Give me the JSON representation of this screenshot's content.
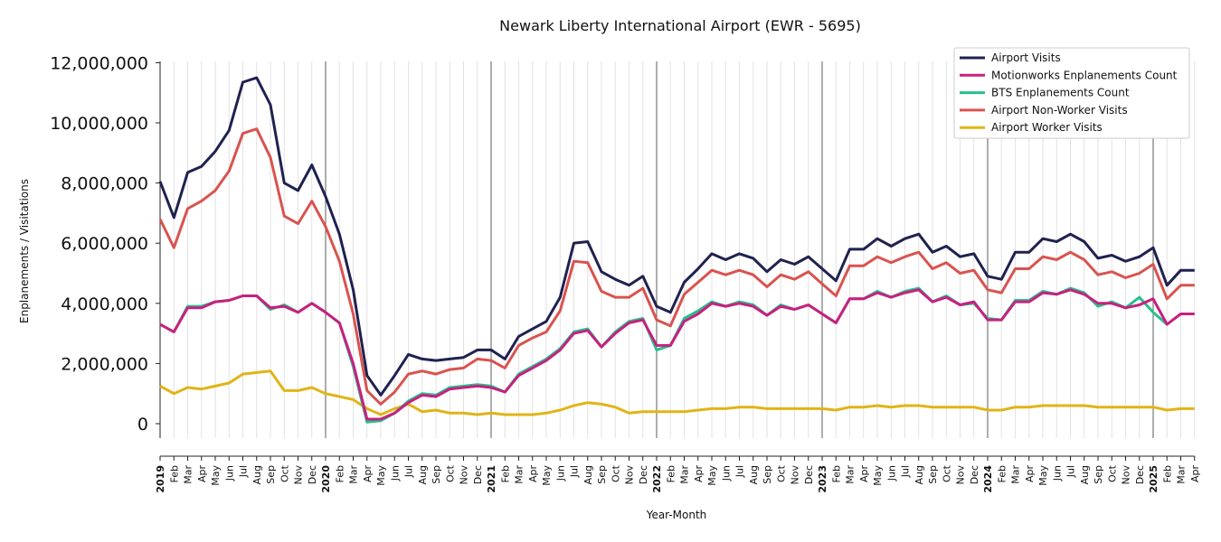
{
  "chart_data": {
    "type": "line",
    "title": "Newark Liberty International Airport (EWR - 5695)",
    "xlabel": "Year-Month",
    "ylabel": "Enplanements / Visitations",
    "ylim": [
      -500000,
      12000000
    ],
    "yticks": [
      0,
      2000000,
      4000000,
      6000000,
      8000000,
      10000000,
      12000000
    ],
    "ytick_labels": [
      "0",
      "2,000,000",
      "4,000,000",
      "6,000,000",
      "8,000,000",
      "10,000,000",
      "12,000,000"
    ],
    "grid": "vertical monthly gridlines",
    "legend_position": "top-right",
    "month_labels": [
      "Feb",
      "Mar",
      "Apr",
      "May",
      "Jun",
      "Jul",
      "Aug",
      "Sep",
      "Oct",
      "Nov",
      "Dec"
    ],
    "year_labels": [
      "2019",
      "2020",
      "2021",
      "2022",
      "2023",
      "2024",
      "2025"
    ],
    "x": [
      "2019-01",
      "2019-02",
      "2019-03",
      "2019-04",
      "2019-05",
      "2019-06",
      "2019-07",
      "2019-08",
      "2019-09",
      "2019-10",
      "2019-11",
      "2019-12",
      "2020-01",
      "2020-02",
      "2020-03",
      "2020-04",
      "2020-05",
      "2020-06",
      "2020-07",
      "2020-08",
      "2020-09",
      "2020-10",
      "2020-11",
      "2020-12",
      "2021-01",
      "2021-02",
      "2021-03",
      "2021-04",
      "2021-05",
      "2021-06",
      "2021-07",
      "2021-08",
      "2021-09",
      "2021-10",
      "2021-11",
      "2021-12",
      "2022-01",
      "2022-02",
      "2022-03",
      "2022-04",
      "2022-05",
      "2022-06",
      "2022-07",
      "2022-08",
      "2022-09",
      "2022-10",
      "2022-11",
      "2022-12",
      "2023-01",
      "2023-02",
      "2023-03",
      "2023-04",
      "2023-05",
      "2023-06",
      "2023-07",
      "2023-08",
      "2023-09",
      "2023-10",
      "2023-11",
      "2023-12",
      "2024-01",
      "2024-02",
      "2024-03",
      "2024-04",
      "2024-05",
      "2024-06",
      "2024-07",
      "2024-08",
      "2024-09",
      "2024-10",
      "2024-11",
      "2024-12",
      "2025-01",
      "2025-02",
      "2025-03",
      "2025-04"
    ],
    "series": [
      {
        "name": "Airport Visits",
        "color": "#1f2150",
        "values": [
          8050000,
          6850000,
          8350000,
          8550000,
          9050000,
          9750000,
          11350000,
          11500000,
          10600000,
          8000000,
          7750000,
          8600000,
          7550000,
          6300000,
          4450000,
          1600000,
          950000,
          1600000,
          2300000,
          2150000,
          2100000,
          2150000,
          2200000,
          2450000,
          2450000,
          2150000,
          2900000,
          3150000,
          3400000,
          4200000,
          6000000,
          6050000,
          5050000,
          4800000,
          4600000,
          4900000,
          3900000,
          3700000,
          4700000,
          5150000,
          5650000,
          5450000,
          5650000,
          5500000,
          5050000,
          5450000,
          5300000,
          5550000,
          5150000,
          4750000,
          5800000,
          5800000,
          6150000,
          5900000,
          6150000,
          6300000,
          5700000,
          5900000,
          5550000,
          5650000,
          4900000,
          4800000,
          5700000,
          5700000,
          6150000,
          6050000,
          6300000,
          6050000,
          5500000,
          5600000,
          5400000,
          5550000,
          5850000,
          4600000,
          5100000,
          5100000
        ]
      },
      {
        "name": "Motionworks Enplanements Count",
        "color": "#c8207f",
        "values": [
          3300000,
          3050000,
          3850000,
          3850000,
          4050000,
          4100000,
          4250000,
          4250000,
          3850000,
          3900000,
          3700000,
          4000000,
          3700000,
          3350000,
          2000000,
          150000,
          150000,
          350000,
          700000,
          950000,
          900000,
          1150000,
          1200000,
          1250000,
          1200000,
          1050000,
          1600000,
          1850000,
          2100000,
          2450000,
          3000000,
          3100000,
          2550000,
          3000000,
          3350000,
          3450000,
          2600000,
          2600000,
          3400000,
          3650000,
          4000000,
          3900000,
          4000000,
          3900000,
          3600000,
          3900000,
          3800000,
          3950000,
          3650000,
          3350000,
          4150000,
          4150000,
          4350000,
          4200000,
          4350000,
          4450000,
          4050000,
          4200000,
          3950000,
          4050000,
          3450000,
          3450000,
          4050000,
          4050000,
          4350000,
          4300000,
          4450000,
          4300000,
          4000000,
          4000000,
          3850000,
          3950000,
          4150000,
          3300000,
          3650000,
          3650000
        ]
      },
      {
        "name": "BTS Enplanements Count",
        "color": "#26c08d",
        "values": [
          3300000,
          3050000,
          3900000,
          3900000,
          4050000,
          4100000,
          4250000,
          4250000,
          3800000,
          3950000,
          3700000,
          4000000,
          3700000,
          3350000,
          1900000,
          50000,
          100000,
          350000,
          750000,
          1000000,
          950000,
          1200000,
          1250000,
          1300000,
          1250000,
          1050000,
          1650000,
          1900000,
          2150000,
          2500000,
          3050000,
          3150000,
          2550000,
          3050000,
          3400000,
          3500000,
          2450000,
          2600000,
          3500000,
          3750000,
          4050000,
          3900000,
          4050000,
          3950000,
          3600000,
          3950000,
          3800000,
          3950000,
          3650000,
          3350000,
          4150000,
          4150000,
          4400000,
          4200000,
          4400000,
          4500000,
          4050000,
          4250000,
          3950000,
          4000000,
          3500000,
          3450000,
          4100000,
          4100000,
          4400000,
          4300000,
          4500000,
          4350000,
          3900000,
          4050000,
          3850000,
          4200000,
          3700000,
          3300000,
          null,
          null
        ]
      },
      {
        "name": "Airport Non-Worker Visits",
        "color": "#d9534f",
        "values": [
          6800000,
          5850000,
          7150000,
          7400000,
          7750000,
          8400000,
          9650000,
          9800000,
          8850000,
          6900000,
          6650000,
          7400000,
          6550000,
          5400000,
          3650000,
          1100000,
          650000,
          1050000,
          1650000,
          1750000,
          1650000,
          1800000,
          1850000,
          2150000,
          2100000,
          1850000,
          2600000,
          2850000,
          3050000,
          3750000,
          5400000,
          5350000,
          4400000,
          4200000,
          4200000,
          4500000,
          3450000,
          3250000,
          4300000,
          4700000,
          5100000,
          4950000,
          5100000,
          4950000,
          4550000,
          4950000,
          4800000,
          5050000,
          4650000,
          4250000,
          5250000,
          5250000,
          5550000,
          5350000,
          5550000,
          5700000,
          5150000,
          5350000,
          5000000,
          5100000,
          4450000,
          4350000,
          5150000,
          5150000,
          5550000,
          5450000,
          5700000,
          5450000,
          4950000,
          5050000,
          4850000,
          5000000,
          5300000,
          4150000,
          4600000,
          4600000
        ]
      },
      {
        "name": "Airport Worker Visits",
        "color": "#e1b416",
        "values": [
          1250000,
          1000000,
          1200000,
          1150000,
          1250000,
          1350000,
          1650000,
          1700000,
          1750000,
          1100000,
          1100000,
          1200000,
          1000000,
          900000,
          800000,
          500000,
          300000,
          500000,
          650000,
          400000,
          450000,
          350000,
          350000,
          300000,
          350000,
          300000,
          300000,
          300000,
          350000,
          450000,
          600000,
          700000,
          650000,
          550000,
          350000,
          400000,
          400000,
          400000,
          400000,
          450000,
          500000,
          500000,
          550000,
          550000,
          500000,
          500000,
          500000,
          500000,
          500000,
          450000,
          550000,
          550000,
          600000,
          550000,
          600000,
          600000,
          550000,
          550000,
          550000,
          550000,
          450000,
          450000,
          550000,
          550000,
          600000,
          600000,
          600000,
          600000,
          550000,
          550000,
          550000,
          550000,
          550000,
          450000,
          500000,
          500000
        ]
      }
    ]
  }
}
